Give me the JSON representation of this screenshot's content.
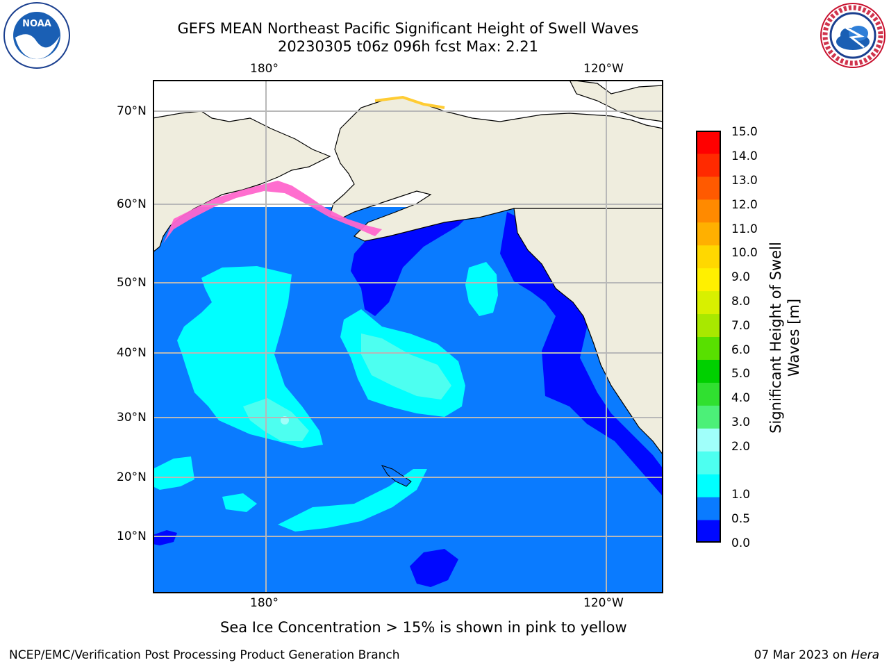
{
  "title": {
    "line1": "GEFS MEAN Northeast Pacific Significant Height of Swell Waves",
    "line2": "20230305 t06z 096h fcst   Max: 2.21"
  },
  "map": {
    "lon_labels": [
      "180°",
      "120°W"
    ],
    "lat_labels": [
      "70°N",
      "60°N",
      "50°N",
      "40°N",
      "30°N",
      "20°N",
      "10°N"
    ],
    "land_color": "#efedde",
    "ocean_color": "#0a7bff",
    "grid_color": "#b8b8b8"
  },
  "colorbar": {
    "label_line1": "Significant Height of Swell",
    "label_line2": "Waves [m]",
    "ticks": [
      "15.0",
      "14.0",
      "13.0",
      "12.0",
      "11.0",
      "10.0",
      "9.0",
      "8.0",
      "7.0",
      "6.0",
      "5.0",
      "4.0",
      "3.0",
      "2.0",
      "1.0",
      "0.5",
      "0.0"
    ],
    "colors_bottom_to_top": [
      "#0008ff",
      "#0a7bff",
      "#00ffff",
      "#4dfff0",
      "#a0fffa",
      "#4cf078",
      "#30e030",
      "#00d000",
      "#58e000",
      "#a8e800",
      "#d8f000",
      "#fff000",
      "#ffd800",
      "#ffb000",
      "#ff8a00",
      "#ff5a00",
      "#ff2a00",
      "#ff0000"
    ]
  },
  "notes": {
    "sea_ice": "Sea Ice Concentration > 15% is shown in pink to yellow"
  },
  "footer": {
    "left": "NCEP/EMC/Verification Post Processing Product Generation Branch",
    "right_prefix": "07 Mar 2023 on ",
    "right_host": "Hera"
  },
  "logos": {
    "noaa_text": "NOAA",
    "nws_text": "NATIONAL WEATHER SERVICE"
  }
}
